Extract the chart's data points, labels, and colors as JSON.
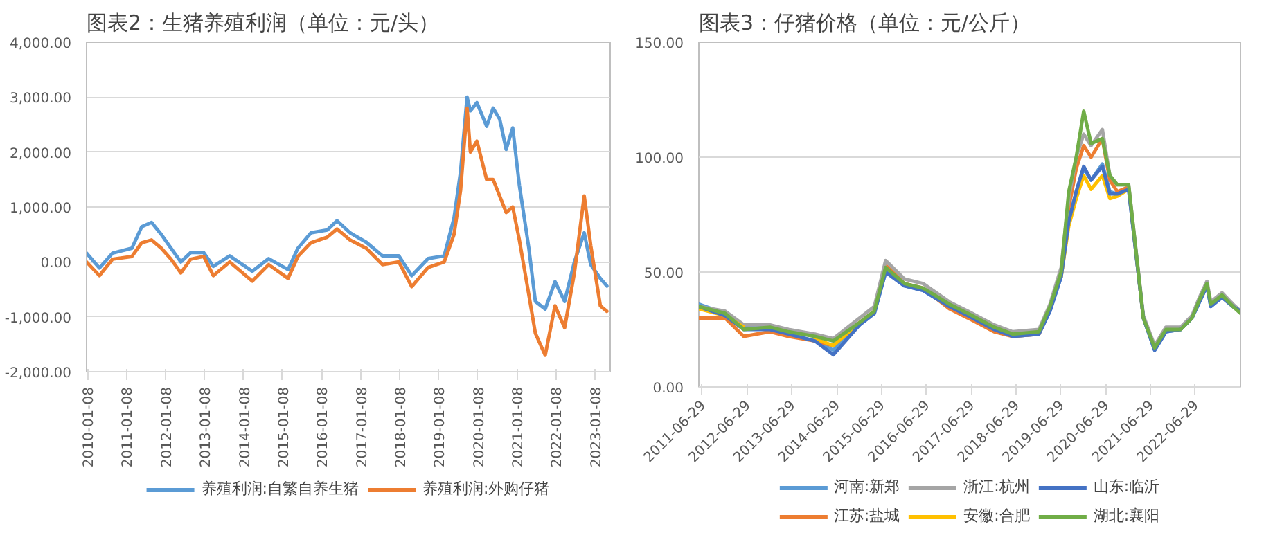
{
  "chart_data": [
    {
      "type": "line",
      "title": "图表2：生猪养殖利润（单位：元/头）",
      "x": [
        "2010-01",
        "2010-05",
        "2010-09",
        "2011-03",
        "2011-06",
        "2011-09",
        "2011-12",
        "2012-03",
        "2012-06",
        "2012-09",
        "2013-01",
        "2013-04",
        "2013-09",
        "2014-04",
        "2014-09",
        "2015-03",
        "2015-06",
        "2015-10",
        "2016-03",
        "2016-06",
        "2016-10",
        "2017-03",
        "2017-08",
        "2018-01",
        "2018-05",
        "2018-10",
        "2019-03",
        "2019-06",
        "2019-08",
        "2019-10",
        "2019-11",
        "2020-01",
        "2020-04",
        "2020-06",
        "2020-08",
        "2020-10",
        "2020-12",
        "2021-02",
        "2021-05",
        "2021-07",
        "2021-10",
        "2022-01",
        "2022-04",
        "2022-07",
        "2022-10",
        "2022-12",
        "2023-03",
        "2023-05"
      ],
      "series": [
        {
          "name": "养殖利润:自繁自养生猪",
          "color": "#5b9bd5",
          "values": [
            160,
            -110,
            160,
            250,
            640,
            720,
            500,
            250,
            0,
            170,
            170,
            -80,
            110,
            -170,
            60,
            -140,
            250,
            530,
            580,
            750,
            530,
            360,
            110,
            110,
            -250,
            60,
            110,
            800,
            1640,
            3000,
            2750,
            2900,
            2470,
            2800,
            2600,
            2050,
            2440,
            1400,
            250,
            -720,
            -860,
            -360,
            -720,
            0,
            530,
            -50,
            -300,
            -440
          ]
        },
        {
          "name": "养殖利润:外购仔猪",
          "color": "#ed7d31",
          "values": [
            0,
            -250,
            50,
            100,
            350,
            400,
            250,
            50,
            -200,
            50,
            100,
            -250,
            0,
            -350,
            -50,
            -300,
            100,
            350,
            450,
            600,
            400,
            250,
            -50,
            0,
            -450,
            -100,
            0,
            500,
            1300,
            2800,
            2000,
            2200,
            1500,
            1500,
            1200,
            900,
            1000,
            400,
            -600,
            -1300,
            -1700,
            -800,
            -1200,
            -200,
            1200,
            300,
            -800,
            -900
          ]
        }
      ],
      "xlim": [
        "2010-01",
        "2023-06"
      ],
      "xticks": [
        "2010-01-08",
        "2011-01-08",
        "2012-01-08",
        "2013-01-08",
        "2014-01-08",
        "2015-01-08",
        "2016-01-08",
        "2017-01-08",
        "2018-01-08",
        "2019-01-08",
        "2020-01-08",
        "2021-01-08",
        "2022-01-08",
        "2023-01-08"
      ],
      "ylim": [
        -2000,
        4000
      ],
      "yticks": [
        {
          "value": -2000,
          "label": "-2,000.00"
        },
        {
          "value": -1000,
          "label": "-1,000.00"
        },
        {
          "value": 0,
          "label": "0.00"
        },
        {
          "value": 1000,
          "label": "1,000.00"
        },
        {
          "value": 2000,
          "label": "2,000.00"
        },
        {
          "value": 3000,
          "label": "3,000.00"
        },
        {
          "value": 4000,
          "label": "4,000.00"
        }
      ],
      "grid": "y",
      "legend": "bottom",
      "marker": "none",
      "line_style": "solid"
    },
    {
      "type": "line",
      "title": "图表3：仔猪价格（单位：元/公斤）",
      "x": [
        "2011-06",
        "2012-01",
        "2012-06",
        "2013-01",
        "2013-06",
        "2014-01",
        "2014-06",
        "2015-01",
        "2015-05",
        "2015-08",
        "2016-01",
        "2016-06",
        "2017-01",
        "2017-06",
        "2018-01",
        "2018-06",
        "2019-01",
        "2019-04",
        "2019-07",
        "2019-09",
        "2019-11",
        "2020-01",
        "2020-03",
        "2020-06",
        "2020-08",
        "2020-10",
        "2021-01",
        "2021-05",
        "2021-08",
        "2021-11",
        "2022-03",
        "2022-06",
        "2022-08",
        "2022-10",
        "2022-11",
        "2023-02",
        "2023-05",
        "2023-07"
      ],
      "series": [
        {
          "name": "河南:新郑",
          "color": "#5b9bd5",
          "values": [
            36,
            32,
            26,
            26,
            23,
            20,
            16,
            27,
            32,
            50,
            44,
            42,
            35,
            31,
            25,
            22,
            23,
            33,
            48,
            72,
            85,
            95,
            90,
            97,
            85,
            84,
            86,
            30,
            16,
            24,
            25,
            30,
            37,
            44,
            35,
            39,
            35,
            33
          ]
        },
        {
          "name": "江苏:盐城",
          "color": "#ed7d31",
          "values": [
            30,
            30,
            22,
            24,
            22,
            20,
            18,
            28,
            33,
            53,
            45,
            43,
            34,
            30,
            24,
            22,
            23,
            34,
            50,
            78,
            95,
            105,
            100,
            108,
            90,
            85,
            87,
            30,
            null,
            null,
            null,
            null,
            null,
            null,
            null,
            null,
            null,
            null
          ]
        },
        {
          "name": "浙江:杭州",
          "color": "#a5a5a5",
          "values": [
            35,
            33,
            27,
            27,
            25,
            23,
            21,
            30,
            35,
            55,
            47,
            45,
            37,
            33,
            27,
            24,
            25,
            36,
            52,
            82,
            100,
            110,
            105,
            112,
            92,
            88,
            88,
            31,
            18,
            26,
            26,
            31,
            39,
            46,
            37,
            41,
            36,
            33
          ]
        },
        {
          "name": "安徽:合肥",
          "color": "#ffc000",
          "values": [
            34,
            31,
            26,
            null,
            null,
            21,
            18,
            28,
            null,
            null,
            null,
            null,
            null,
            null,
            null,
            null,
            null,
            null,
            48,
            70,
            82,
            92,
            86,
            92,
            82,
            83,
            86,
            null,
            null,
            null,
            null,
            null,
            null,
            null,
            null,
            null,
            null,
            null
          ]
        },
        {
          "name": "山东:临沂",
          "color": "#4472c4",
          "values": [
            35,
            31,
            25,
            25,
            23,
            20,
            14,
            27,
            32,
            50,
            44,
            42,
            35,
            31,
            25,
            22,
            23,
            33,
            48,
            72,
            85,
            96,
            90,
            96,
            84,
            84,
            86,
            30,
            16,
            24,
            25,
            30,
            37,
            44,
            35,
            39,
            35,
            33
          ]
        },
        {
          "name": "湖北:襄阳",
          "color": "#70ad47",
          "values": [
            35,
            32,
            25,
            26,
            24,
            22,
            20,
            28,
            33,
            52,
            45,
            43,
            36,
            32,
            26,
            23,
            24,
            35,
            50,
            85,
            100,
            120,
            106,
            108,
            92,
            88,
            88,
            30,
            17,
            25,
            25,
            30,
            38,
            45,
            36,
            40,
            35,
            32
          ]
        }
      ],
      "xlim": [
        "2011-06",
        "2023-07"
      ],
      "xticks": [
        "2011-06-29",
        "2012-06-29",
        "2013-06-29",
        "2014-06-29",
        "2015-06-29",
        "2016-06-29",
        "2017-06-29",
        "2018-06-29",
        "2019-06-29",
        "2020-06-29",
        "2021-06-29",
        "2022-06-29"
      ],
      "ylim": [
        0,
        150
      ],
      "yticks": [
        {
          "value": 0,
          "label": "0.00"
        },
        {
          "value": 50,
          "label": "50.00"
        },
        {
          "value": 100,
          "label": "100.00"
        },
        {
          "value": 150,
          "label": "150.00"
        }
      ],
      "grid": "y",
      "legend": "bottom",
      "marker": "none",
      "line_style": "solid"
    }
  ]
}
